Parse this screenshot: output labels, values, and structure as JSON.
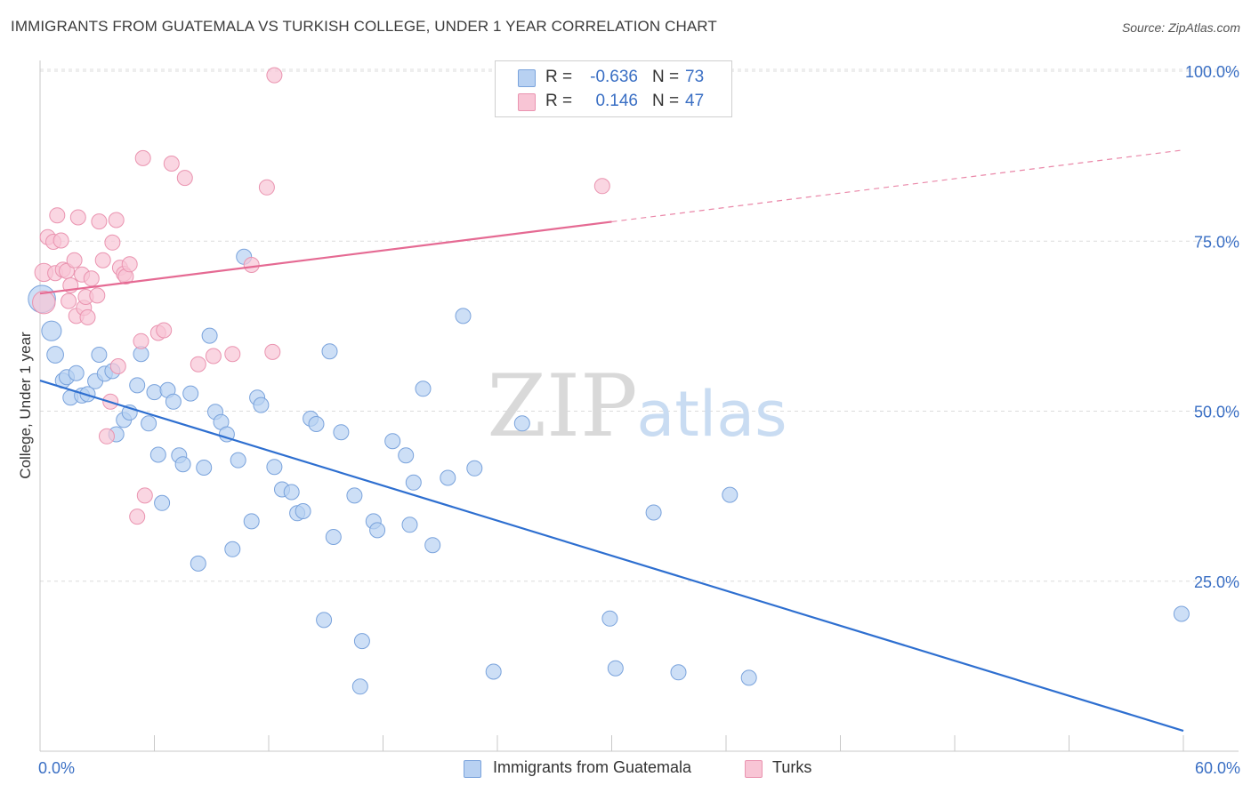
{
  "title": "IMMIGRANTS FROM GUATEMALA VS TURKISH COLLEGE, UNDER 1 YEAR CORRELATION CHART",
  "source": "Source: ZipAtlas.com",
  "watermark": {
    "zip": "ZIP",
    "atlas": "atlas"
  },
  "legend": {
    "r_label": "R =",
    "n_label": "N =",
    "rows": [
      {
        "r": "-0.636",
        "n": "73",
        "fill": "#b8d1f2",
        "stroke": "#7aa3dc"
      },
      {
        "r": "0.146",
        "n": "47",
        "fill": "#f8c5d5",
        "stroke": "#ea94b0"
      }
    ]
  },
  "bottom_legend": [
    {
      "label": "Immigrants from Guatemala",
      "fill": "#b8d1f2",
      "stroke": "#7aa3dc"
    },
    {
      "label": "Turks",
      "fill": "#f8c5d5",
      "stroke": "#ea94b0"
    }
  ],
  "chart_data": {
    "type": "scatter",
    "xlabel": "",
    "ylabel": "College, Under 1 year",
    "xlim": [
      0,
      60
    ],
    "ylim": [
      0,
      102
    ],
    "x_tick_labels": [
      {
        "value": 0,
        "label": "0.0%"
      },
      {
        "value": 60,
        "label": "60.0%"
      }
    ],
    "x_minor_ticks": [
      6,
      12,
      18,
      24,
      30,
      36,
      42,
      48,
      54
    ],
    "y_ticks": [
      {
        "value": 25,
        "label": "25.0%"
      },
      {
        "value": 50,
        "label": "50.0%"
      },
      {
        "value": 75,
        "label": "75.0%"
      },
      {
        "value": 100,
        "label": "100.0%"
      }
    ],
    "grid": "horizontal dashed",
    "legend_position": "top-center",
    "series": [
      {
        "name": "Immigrants from Guatemala",
        "color": "#7aa3dc",
        "fill": "#b8d1f2",
        "line_color": "#2e6fd0",
        "trend": {
          "x0": 0,
          "y0": 54.5,
          "x1": 60,
          "y1": 3.0,
          "dashed_from": null
        },
        "points": [
          [
            0.1,
            66.5,
            1.8
          ],
          [
            0.6,
            61.8,
            1.3
          ],
          [
            0.8,
            58.3,
            1.1
          ],
          [
            1.2,
            54.5,
            1
          ],
          [
            1.4,
            55.0,
            1
          ],
          [
            1.6,
            52.0,
            1
          ],
          [
            1.9,
            55.6,
            1
          ],
          [
            2.2,
            52.3,
            1
          ],
          [
            2.5,
            52.5,
            1
          ],
          [
            2.9,
            54.4,
            1
          ],
          [
            3.1,
            58.3,
            1
          ],
          [
            3.4,
            55.5,
            1
          ],
          [
            3.8,
            55.9,
            1
          ],
          [
            4.0,
            46.6,
            1
          ],
          [
            4.4,
            48.7,
            1
          ],
          [
            4.7,
            49.8,
            1
          ],
          [
            5.1,
            53.8,
            1
          ],
          [
            5.3,
            58.4,
            1
          ],
          [
            5.7,
            48.2,
            1
          ],
          [
            6.0,
            52.8,
            1
          ],
          [
            6.2,
            43.6,
            1
          ],
          [
            6.4,
            36.5,
            1
          ],
          [
            6.7,
            53.1,
            1
          ],
          [
            7.0,
            51.4,
            1
          ],
          [
            7.3,
            43.5,
            1
          ],
          [
            7.5,
            42.2,
            1
          ],
          [
            7.9,
            52.6,
            1
          ],
          [
            8.3,
            27.6,
            1
          ],
          [
            8.6,
            41.7,
            1
          ],
          [
            8.9,
            61.1,
            1
          ],
          [
            9.2,
            49.9,
            1
          ],
          [
            9.5,
            48.4,
            1
          ],
          [
            9.8,
            46.6,
            1
          ],
          [
            10.1,
            29.7,
            1
          ],
          [
            10.4,
            42.8,
            1
          ],
          [
            10.7,
            72.7,
            1
          ],
          [
            11.1,
            33.8,
            1
          ],
          [
            11.4,
            52.0,
            1
          ],
          [
            11.6,
            50.9,
            1
          ],
          [
            12.3,
            41.8,
            1
          ],
          [
            12.7,
            38.5,
            1
          ],
          [
            13.2,
            38.1,
            1
          ],
          [
            13.5,
            35.0,
            1
          ],
          [
            13.8,
            35.3,
            1
          ],
          [
            14.2,
            48.9,
            1
          ],
          [
            14.5,
            48.1,
            1
          ],
          [
            14.9,
            19.3,
            1
          ],
          [
            15.2,
            58.8,
            1
          ],
          [
            15.4,
            31.5,
            1
          ],
          [
            15.8,
            46.9,
            1
          ],
          [
            16.5,
            37.6,
            1
          ],
          [
            16.8,
            9.5,
            1
          ],
          [
            16.9,
            16.2,
            1
          ],
          [
            17.5,
            33.8,
            1
          ],
          [
            17.7,
            32.5,
            1
          ],
          [
            18.5,
            45.6,
            1
          ],
          [
            19.2,
            43.5,
            1
          ],
          [
            19.4,
            33.3,
            1
          ],
          [
            19.6,
            39.5,
            1
          ],
          [
            20.1,
            53.3,
            1
          ],
          [
            20.6,
            30.3,
            1
          ],
          [
            21.4,
            40.2,
            1
          ],
          [
            22.2,
            64.0,
            1
          ],
          [
            22.8,
            41.6,
            1
          ],
          [
            23.8,
            11.7,
            1
          ],
          [
            25.3,
            48.2,
            1
          ],
          [
            29.9,
            19.5,
            1
          ],
          [
            30.2,
            12.2,
            1
          ],
          [
            32.2,
            35.1,
            1
          ],
          [
            33.5,
            11.6,
            1
          ],
          [
            36.2,
            37.7,
            1
          ],
          [
            37.2,
            10.8,
            1
          ],
          [
            59.9,
            20.2,
            1
          ]
        ]
      },
      {
        "name": "Turks",
        "color": "#ea94b0",
        "fill": "#f8c5d5",
        "line_color": "#e56a93",
        "trend": {
          "x0": 0,
          "y0": 67.3,
          "x1": 60,
          "y1": 88.4,
          "dashed_from": 30
        },
        "points": [
          [
            0.2,
            66.0,
            1.5
          ],
          [
            0.2,
            70.4,
            1.2
          ],
          [
            0.4,
            75.6,
            1
          ],
          [
            0.7,
            74.9,
            1
          ],
          [
            0.8,
            70.3,
            1
          ],
          [
            0.9,
            78.8,
            1
          ],
          [
            1.1,
            75.1,
            1
          ],
          [
            1.2,
            70.8,
            1
          ],
          [
            1.4,
            70.6,
            1
          ],
          [
            1.5,
            66.2,
            1
          ],
          [
            1.6,
            68.5,
            1
          ],
          [
            1.8,
            72.2,
            1
          ],
          [
            1.9,
            64.0,
            1
          ],
          [
            2.0,
            78.5,
            1
          ],
          [
            2.2,
            70.1,
            1
          ],
          [
            2.3,
            65.2,
            1
          ],
          [
            2.4,
            66.8,
            1
          ],
          [
            2.5,
            63.8,
            1
          ],
          [
            2.7,
            69.5,
            1
          ],
          [
            3.0,
            67.0,
            1
          ],
          [
            3.1,
            77.9,
            1
          ],
          [
            3.3,
            72.2,
            1
          ],
          [
            3.5,
            46.3,
            1
          ],
          [
            3.7,
            51.4,
            1
          ],
          [
            3.8,
            74.8,
            1
          ],
          [
            4.0,
            78.1,
            1
          ],
          [
            4.1,
            56.6,
            1
          ],
          [
            4.2,
            71.1,
            1
          ],
          [
            4.4,
            70.2,
            1
          ],
          [
            4.5,
            69.8,
            1
          ],
          [
            4.7,
            71.6,
            1
          ],
          [
            5.1,
            34.5,
            1
          ],
          [
            5.3,
            60.3,
            1
          ],
          [
            5.4,
            87.2,
            1
          ],
          [
            5.5,
            37.6,
            1
          ],
          [
            6.2,
            61.5,
            1
          ],
          [
            6.5,
            61.9,
            1
          ],
          [
            6.9,
            86.4,
            1
          ],
          [
            7.6,
            84.3,
            1
          ],
          [
            8.3,
            56.9,
            1
          ],
          [
            9.1,
            58.1,
            1
          ],
          [
            10.1,
            58.4,
            1
          ],
          [
            11.1,
            71.5,
            1
          ],
          [
            11.9,
            82.9,
            1
          ],
          [
            12.2,
            58.7,
            1
          ],
          [
            12.3,
            99.4,
            1
          ],
          [
            29.5,
            83.1,
            1
          ]
        ]
      }
    ]
  }
}
